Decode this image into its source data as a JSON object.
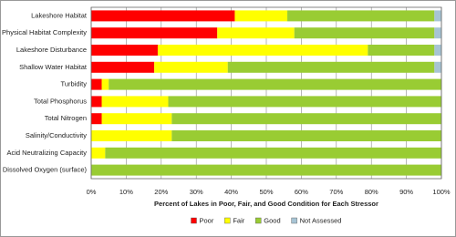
{
  "chart_data": {
    "type": "stacked_barh",
    "categories": [
      "Lakeshore Habitat",
      "Physical Habitat Complexity",
      "Lakeshore Disturbance",
      "Shallow Water Habitat",
      "Turbidity",
      "Total Phosphorus",
      "Total Nitrogen",
      "Salinity/Conductivity",
      "Acid Neutralizing Capacity",
      "Dissolved Oxygen (surface)"
    ],
    "series": [
      {
        "name": "Poor",
        "color": "#ff0000",
        "values": [
          41,
          36,
          19,
          18,
          3,
          3,
          3,
          0,
          0,
          0
        ]
      },
      {
        "name": "Fair",
        "color": "#ffff00",
        "values": [
          15,
          22,
          60,
          21,
          2,
          19,
          20,
          23,
          4,
          0
        ]
      },
      {
        "name": "Good",
        "color": "#99cc33",
        "values": [
          42,
          40,
          19,
          59,
          95,
          78,
          77,
          77,
          96,
          100
        ]
      },
      {
        "name": "Not Assessed",
        "color": "#a7c4d4",
        "values": [
          2,
          2,
          2,
          2,
          0,
          0,
          0,
          0,
          0,
          0
        ]
      }
    ],
    "xlabel": "Percent of Lakes in Poor, Fair, and Good Condition for Each Stressor",
    "xlim": [
      0,
      100
    ],
    "xticks": [
      {
        "value": 0,
        "label": "0%"
      },
      {
        "value": 10,
        "label": "10%"
      },
      {
        "value": 20,
        "label": "20%"
      },
      {
        "value": 30,
        "label": "30%"
      },
      {
        "value": 40,
        "label": "40%"
      },
      {
        "value": 50,
        "label": "50%"
      },
      {
        "value": 60,
        "label": "60%"
      },
      {
        "value": 70,
        "label": "70%"
      },
      {
        "value": 80,
        "label": "80%"
      },
      {
        "value": 90,
        "label": "90%"
      },
      {
        "value": 100,
        "label": "100%"
      }
    ],
    "grid": true,
    "legend": "bottom"
  }
}
